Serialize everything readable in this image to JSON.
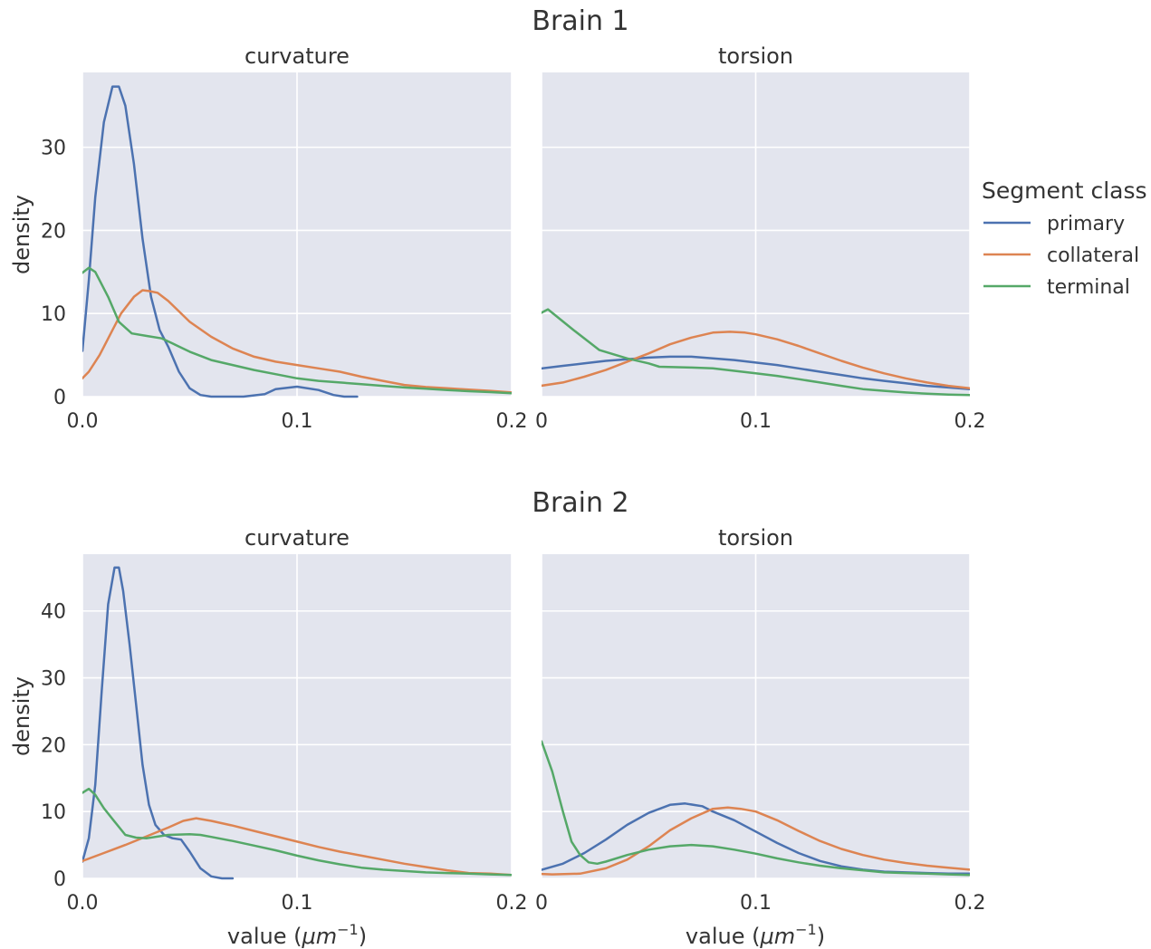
{
  "figure": {
    "brain_titles": [
      "Brain 1",
      "Brain 2"
    ],
    "ylabel": "density",
    "xlabel_prefix": "value (",
    "xlabel_unit": "μm",
    "xlabel_exp": "−1",
    "xlabel_suffix": ")"
  },
  "legend": {
    "title": "Segment class",
    "items": [
      {
        "label": "primary",
        "color": "#4c72b0"
      },
      {
        "label": "collateral",
        "color": "#dd8452"
      },
      {
        "label": "terminal",
        "color": "#55a868"
      }
    ]
  },
  "chart_data": [
    {
      "type": "line",
      "brain": "Brain 1",
      "title": "curvature",
      "xlim": [
        0,
        0.2
      ],
      "ylim": [
        0,
        39
      ],
      "xticks": [
        0,
        0.1,
        0.2
      ],
      "xtick_labels": [
        "0.0",
        "0.1",
        "0.2"
      ],
      "yticks": [
        0,
        10,
        20,
        30
      ],
      "ytick_labels": [
        "0",
        "10",
        "20",
        "30"
      ],
      "grid": true,
      "series": [
        {
          "name": "primary",
          "x": [
            0,
            0.003,
            0.006,
            0.01,
            0.014,
            0.017,
            0.02,
            0.024,
            0.028,
            0.032,
            0.036,
            0.04,
            0.045,
            0.05,
            0.055,
            0.06,
            0.07,
            0.075,
            0.085,
            0.09,
            0.1,
            0.11,
            0.117,
            0.122,
            0.128
          ],
          "y": [
            5.5,
            14,
            24,
            33,
            37.3,
            37.3,
            35,
            28,
            19,
            12,
            8,
            6,
            3,
            1,
            0.2,
            0,
            0,
            0,
            0.3,
            0.9,
            1.2,
            0.8,
            0.2,
            0,
            0
          ]
        },
        {
          "name": "collateral",
          "x": [
            0,
            0.003,
            0.008,
            0.013,
            0.018,
            0.024,
            0.028,
            0.031,
            0.035,
            0.04,
            0.05,
            0.06,
            0.07,
            0.08,
            0.09,
            0.1,
            0.11,
            0.12,
            0.13,
            0.14,
            0.15,
            0.16,
            0.17,
            0.18,
            0.19,
            0.2
          ],
          "y": [
            2.2,
            3,
            5,
            7.5,
            10,
            12,
            12.8,
            12.7,
            12.5,
            11.5,
            9,
            7.2,
            5.8,
            4.8,
            4.2,
            3.8,
            3.4,
            3,
            2.4,
            1.9,
            1.4,
            1.15,
            1,
            0.85,
            0.7,
            0.5
          ]
        },
        {
          "name": "terminal",
          "x": [
            0,
            0.003,
            0.006,
            0.012,
            0.017,
            0.023,
            0.03,
            0.037,
            0.042,
            0.05,
            0.06,
            0.07,
            0.08,
            0.09,
            0.1,
            0.11,
            0.12,
            0.13,
            0.14,
            0.15,
            0.16,
            0.17,
            0.18,
            0.19,
            0.2
          ],
          "y": [
            14.9,
            15.5,
            15,
            12,
            9,
            7.6,
            7.3,
            7,
            6.4,
            5.4,
            4.4,
            3.8,
            3.2,
            2.7,
            2.2,
            1.9,
            1.7,
            1.5,
            1.3,
            1.1,
            0.95,
            0.8,
            0.65,
            0.55,
            0.4
          ]
        }
      ]
    },
    {
      "type": "line",
      "brain": "Brain 1",
      "title": "torsion",
      "xlim": [
        0,
        0.2
      ],
      "ylim": [
        0,
        39
      ],
      "xticks": [
        0,
        0.1,
        0.2
      ],
      "xtick_labels": [
        "0",
        "0.1",
        "0.2"
      ],
      "yticks": [
        0,
        10,
        20,
        30
      ],
      "ytick_labels": [
        "",
        "",
        "",
        ""
      ],
      "grid": true,
      "series": [
        {
          "name": "primary",
          "x": [
            -0.003,
            0.01,
            0.02,
            0.03,
            0.04,
            0.05,
            0.06,
            0.07,
            0.08,
            0.09,
            0.1,
            0.11,
            0.12,
            0.13,
            0.14,
            0.15,
            0.16,
            0.17,
            0.18,
            0.19,
            0.2
          ],
          "y": [
            3.3,
            3.7,
            4,
            4.3,
            4.5,
            4.7,
            4.8,
            4.8,
            4.6,
            4.4,
            4.1,
            3.8,
            3.4,
            3,
            2.6,
            2.2,
            1.9,
            1.6,
            1.3,
            1.1,
            0.9
          ]
        },
        {
          "name": "collateral",
          "x": [
            -0.003,
            0.01,
            0.02,
            0.03,
            0.04,
            0.05,
            0.06,
            0.07,
            0.08,
            0.088,
            0.095,
            0.1,
            0.11,
            0.12,
            0.13,
            0.14,
            0.15,
            0.16,
            0.17,
            0.18,
            0.19,
            0.2
          ],
          "y": [
            1.2,
            1.7,
            2.4,
            3.2,
            4.2,
            5.2,
            6.3,
            7.1,
            7.7,
            7.8,
            7.7,
            7.5,
            6.9,
            6.1,
            5.2,
            4.3,
            3.5,
            2.8,
            2.2,
            1.7,
            1.3,
            1
          ]
        },
        {
          "name": "terminal",
          "x": [
            -0.003,
            0.003,
            0.015,
            0.027,
            0.04,
            0.05,
            0.055,
            0.07,
            0.08,
            0.09,
            0.1,
            0.11,
            0.12,
            0.13,
            0.14,
            0.15,
            0.16,
            0.17,
            0.18,
            0.19,
            0.2
          ],
          "y": [
            9.7,
            10.5,
            8,
            5.6,
            4.6,
            4,
            3.6,
            3.5,
            3.4,
            3.1,
            2.8,
            2.5,
            2.1,
            1.7,
            1.3,
            0.9,
            0.7,
            0.5,
            0.35,
            0.25,
            0.2
          ]
        }
      ]
    },
    {
      "type": "line",
      "brain": "Brain 2",
      "title": "curvature",
      "xlim": [
        0,
        0.2
      ],
      "ylim": [
        0,
        48.5
      ],
      "xticks": [
        0,
        0.1,
        0.2
      ],
      "xtick_labels": [
        "0.0",
        "0.1",
        "0.2"
      ],
      "yticks": [
        0,
        10,
        20,
        30,
        40
      ],
      "ytick_labels": [
        "0",
        "10",
        "20",
        "30",
        "40"
      ],
      "grid": true,
      "series": [
        {
          "name": "primary",
          "x": [
            0,
            0.003,
            0.006,
            0.009,
            0.012,
            0.015,
            0.017,
            0.019,
            0.022,
            0.025,
            0.028,
            0.031,
            0.034,
            0.038,
            0.042,
            0.046,
            0.05,
            0.055,
            0.06,
            0.065,
            0.07
          ],
          "y": [
            2.5,
            6,
            14,
            28,
            41,
            46.5,
            46.5,
            43,
            35,
            26,
            17,
            11,
            8,
            6.5,
            6,
            5.8,
            4,
            1.5,
            0.3,
            0,
            0
          ]
        },
        {
          "name": "collateral",
          "x": [
            0,
            0.01,
            0.02,
            0.03,
            0.04,
            0.047,
            0.053,
            0.06,
            0.07,
            0.08,
            0.09,
            0.1,
            0.11,
            0.12,
            0.13,
            0.14,
            0.15,
            0.16,
            0.17,
            0.18,
            0.19,
            0.2
          ],
          "y": [
            2.6,
            3.8,
            5,
            6.3,
            7.6,
            8.6,
            9,
            8.6,
            7.9,
            7.1,
            6.3,
            5.5,
            4.7,
            4,
            3.4,
            2.8,
            2.2,
            1.7,
            1.2,
            0.8,
            0.7,
            0.5
          ]
        },
        {
          "name": "terminal",
          "x": [
            0,
            0.003,
            0.006,
            0.01,
            0.015,
            0.02,
            0.025,
            0.03,
            0.04,
            0.05,
            0.055,
            0.06,
            0.07,
            0.08,
            0.09,
            0.1,
            0.11,
            0.12,
            0.13,
            0.14,
            0.15,
            0.16,
            0.17,
            0.18,
            0.19,
            0.2
          ],
          "y": [
            12.8,
            13.4,
            12.5,
            10.5,
            8.5,
            6.5,
            6.1,
            6,
            6.5,
            6.6,
            6.5,
            6.2,
            5.6,
            4.9,
            4.2,
            3.4,
            2.7,
            2.1,
            1.6,
            1.3,
            1.1,
            0.9,
            0.8,
            0.7,
            0.6,
            0.5
          ]
        }
      ]
    },
    {
      "type": "line",
      "brain": "Brain 2",
      "title": "torsion",
      "xlim": [
        0,
        0.2
      ],
      "ylim": [
        0,
        48.5
      ],
      "xticks": [
        0,
        0.1,
        0.2
      ],
      "xtick_labels": [
        "0",
        "0.1",
        "0.2"
      ],
      "yticks": [
        0,
        10,
        20,
        30,
        40
      ],
      "ytick_labels": [
        "",
        "",
        "",
        "",
        ""
      ],
      "grid": true,
      "series": [
        {
          "name": "primary",
          "x": [
            -0.003,
            0.01,
            0.02,
            0.03,
            0.04,
            0.05,
            0.06,
            0.067,
            0.075,
            0.08,
            0.09,
            0.1,
            0.11,
            0.12,
            0.13,
            0.14,
            0.15,
            0.16,
            0.17,
            0.18,
            0.19,
            0.2
          ],
          "y": [
            1,
            2.2,
            3.8,
            5.8,
            8,
            9.8,
            11,
            11.2,
            10.8,
            10,
            8.7,
            7,
            5.3,
            3.8,
            2.6,
            1.8,
            1.3,
            1,
            0.9,
            0.8,
            0.7,
            0.7
          ]
        },
        {
          "name": "collateral",
          "x": [
            -0.003,
            0.005,
            0.018,
            0.03,
            0.04,
            0.05,
            0.06,
            0.07,
            0.08,
            0.087,
            0.093,
            0.1,
            0.11,
            0.12,
            0.13,
            0.14,
            0.15,
            0.16,
            0.17,
            0.18,
            0.19,
            0.2
          ],
          "y": [
            0.7,
            0.6,
            0.7,
            1.5,
            2.8,
            4.8,
            7.2,
            9,
            10.4,
            10.6,
            10.4,
            10,
            8.7,
            7.1,
            5.6,
            4.4,
            3.5,
            2.8,
            2.3,
            1.9,
            1.6,
            1.3
          ]
        },
        {
          "name": "terminal",
          "x": [
            -0.003,
            0,
            0.005,
            0.01,
            0.014,
            0.018,
            0.022,
            0.026,
            0.03,
            0.04,
            0.05,
            0.06,
            0.07,
            0.08,
            0.09,
            0.1,
            0.11,
            0.12,
            0.13,
            0.14,
            0.15,
            0.16,
            0.17,
            0.18,
            0.19,
            0.2
          ],
          "y": [
            21,
            20.5,
            16,
            10,
            5.5,
            3.5,
            2.4,
            2.2,
            2.5,
            3.5,
            4.3,
            4.8,
            5,
            4.8,
            4.3,
            3.7,
            3,
            2.4,
            1.9,
            1.5,
            1.2,
            0.9,
            0.8,
            0.7,
            0.6,
            0.5
          ]
        }
      ]
    }
  ]
}
